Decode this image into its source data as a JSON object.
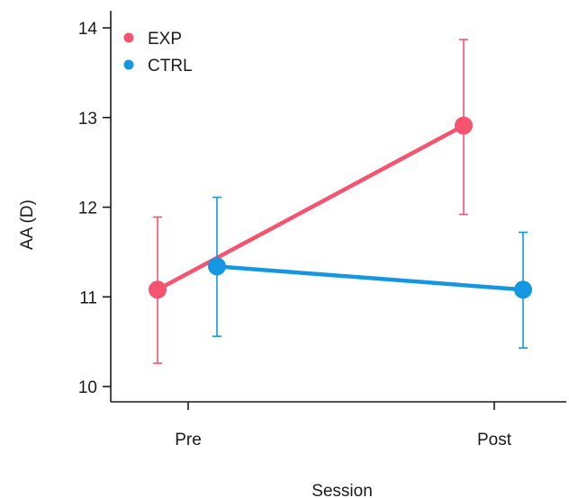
{
  "chart_data": {
    "type": "line",
    "categories": [
      "Pre",
      "Post"
    ],
    "xlabel": "Session",
    "ylabel": "AA (D)",
    "ylim": [
      10,
      14
    ],
    "yticks": [
      10,
      11,
      12,
      13,
      14
    ],
    "legend_position": "top-left",
    "grid": false,
    "series": [
      {
        "name": "EXP",
        "color": "#f4546f",
        "values": [
          11.08,
          12.91
        ],
        "err_low": [
          10.26,
          11.92
        ],
        "err_high": [
          11.89,
          13.87
        ]
      },
      {
        "name": "CTRL",
        "color": "#1596e0",
        "values": [
          11.34,
          11.08
        ],
        "err_low": [
          10.56,
          10.43
        ],
        "err_high": [
          12.11,
          11.72
        ]
      }
    ]
  }
}
